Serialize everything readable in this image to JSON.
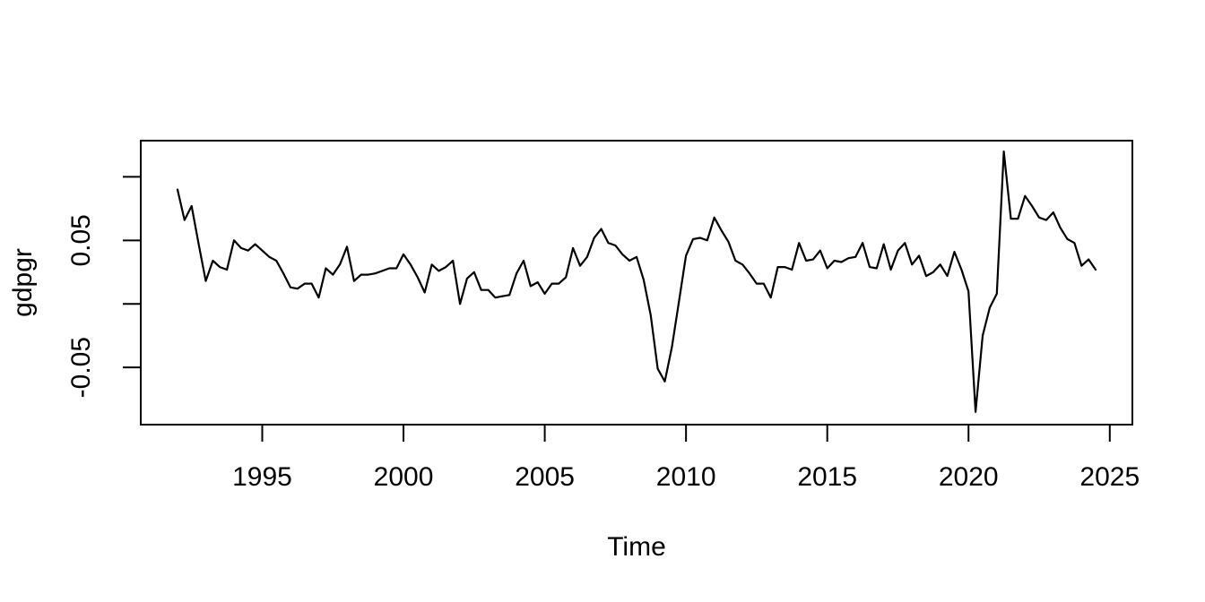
{
  "figure": {
    "background_color": "#ffffff",
    "foreground_color": "#000000",
    "title": ""
  },
  "chart_data": {
    "type": "line",
    "title": "",
    "xlabel": "Time",
    "ylabel": "gdpgr",
    "series_name": "gdpgr",
    "frequency": "quarterly",
    "x_start": 1992.0,
    "x_step": 0.25,
    "x_end": 2024.5,
    "xlim": [
      1990.7,
      2025.8
    ],
    "ylim": [
      -0.095,
      0.1285
    ],
    "grid": false,
    "legend": "none",
    "line_color": "#000000",
    "x_ticks": [
      {
        "v": 1995,
        "label": "1995"
      },
      {
        "v": 2000,
        "label": "2000"
      },
      {
        "v": 2005,
        "label": "2005"
      },
      {
        "v": 2010,
        "label": "2010"
      },
      {
        "v": 2015,
        "label": "2015"
      },
      {
        "v": 2020,
        "label": "2020"
      },
      {
        "v": 2025,
        "label": "2025"
      }
    ],
    "y_ticks": [
      {
        "v": -0.05,
        "label": "-0.05"
      },
      {
        "v": 0.0,
        "label": ""
      },
      {
        "v": 0.05,
        "label": "0.05"
      },
      {
        "v": 0.1,
        "label": ""
      }
    ],
    "values": [
      0.09,
      0.066,
      0.077,
      0.047,
      0.018,
      0.034,
      0.029,
      0.027,
      0.05,
      0.044,
      0.042,
      0.047,
      0.042,
      0.037,
      0.034,
      0.024,
      0.013,
      0.012,
      0.016,
      0.016,
      0.005,
      0.028,
      0.023,
      0.031,
      0.045,
      0.018,
      0.023,
      0.023,
      0.024,
      0.026,
      0.028,
      0.028,
      0.039,
      0.031,
      0.021,
      0.009,
      0.031,
      0.026,
      0.029,
      0.034,
      0.0,
      0.02,
      0.025,
      0.011,
      0.011,
      0.005,
      0.006,
      0.007,
      0.024,
      0.034,
      0.014,
      0.017,
      0.008,
      0.016,
      0.016,
      0.021,
      0.044,
      0.03,
      0.037,
      0.052,
      0.059,
      0.048,
      0.046,
      0.039,
      0.034,
      0.037,
      0.019,
      -0.009,
      -0.051,
      -0.061,
      -0.034,
      0.002,
      0.038,
      0.051,
      0.052,
      0.05,
      0.068,
      0.058,
      0.049,
      0.034,
      0.031,
      0.024,
      0.016,
      0.016,
      0.005,
      0.029,
      0.029,
      0.027,
      0.048,
      0.034,
      0.035,
      0.042,
      0.028,
      0.034,
      0.033,
      0.036,
      0.037,
      0.048,
      0.029,
      0.028,
      0.047,
      0.027,
      0.042,
      0.048,
      0.031,
      0.038,
      0.022,
      0.025,
      0.031,
      0.022,
      0.041,
      0.027,
      0.01,
      -0.085,
      -0.025,
      -0.003,
      0.008,
      0.12,
      0.067,
      0.067,
      0.085,
      0.077,
      0.068,
      0.066,
      0.072,
      0.06,
      0.051,
      0.048,
      0.03,
      0.035,
      0.027
    ]
  }
}
